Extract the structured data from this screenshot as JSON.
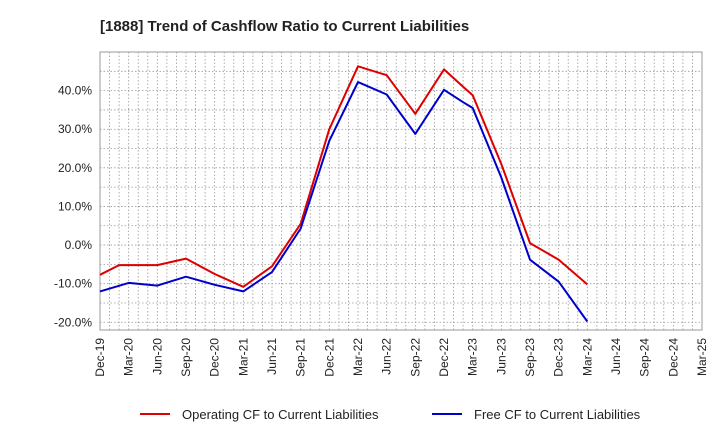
{
  "chart_data": {
    "type": "line",
    "title": "[1888]  Trend of Cashflow Ratio to Current Liabilities",
    "xlabel": "",
    "ylabel": "",
    "ylim": [
      -22,
      50
    ],
    "y_ticks": [
      40,
      30,
      20,
      10,
      0,
      -10,
      -20
    ],
    "y_tick_labels": [
      "40.0%",
      "30.0%",
      "20.0%",
      "10.0%",
      "0.0%",
      "-10.0%",
      "-20.0%"
    ],
    "x": [
      "Dec-19",
      "Mar-20",
      "Jun-20",
      "Sep-20",
      "Dec-20",
      "Mar-21",
      "Jun-21",
      "Sep-21",
      "Dec-21",
      "Mar-22",
      "Jun-22",
      "Sep-22",
      "Dec-22",
      "Mar-23",
      "Jun-23",
      "Sep-23",
      "Dec-23",
      "Mar-24",
      "Jun-24",
      "Sep-24",
      "Dec-24",
      "Mar-25"
    ],
    "x_tick_labels": [
      "Dec-19",
      "Mar-20",
      "Jun-20",
      "Sep-20",
      "Dec-20",
      "Mar-21",
      "Jun-21",
      "Sep-21",
      "Dec-21",
      "Mar-22",
      "Jun-22",
      "Sep-22",
      "Dec-22",
      "Mar-23",
      "Jun-23",
      "Sep-23",
      "Dec-23",
      "Mar-24",
      "Jun-24",
      "Sep-24",
      "Dec-24",
      "Mar-25"
    ],
    "grid": true,
    "legend_position": "bottom",
    "series": [
      {
        "name": "Operating CF to Current Liabilities",
        "color": "#dd0000",
        "points": [
          [
            "Dec-19",
            -7.7
          ],
          [
            "Feb-20",
            -5.2
          ],
          [
            "Jun-20",
            -5.2
          ],
          [
            "Sep-20",
            -3.5
          ],
          [
            "Dec-20",
            -7.5
          ],
          [
            "Mar-21",
            -10.8
          ],
          [
            "Jun-21",
            -5.5
          ],
          [
            "Sep-21",
            5.5
          ],
          [
            "Dec-21",
            30.0
          ],
          [
            "Mar-22",
            46.3
          ],
          [
            "Jun-22",
            44.0
          ],
          [
            "Sep-22",
            34.0
          ],
          [
            "Dec-22",
            45.5
          ],
          [
            "Feb-23",
            41.0
          ],
          [
            "Mar-23",
            38.8
          ],
          [
            "Jun-23",
            21.0
          ],
          [
            "Sep-23",
            0.5
          ],
          [
            "Dec-23",
            -3.8
          ],
          [
            "Mar-24",
            -10.2
          ]
        ]
      },
      {
        "name": "Free CF to Current Liabilities",
        "color": "#0000cc",
        "points": [
          [
            "Dec-19",
            -12.0
          ],
          [
            "Mar-20",
            -9.8
          ],
          [
            "Jun-20",
            -10.5
          ],
          [
            "Sep-20",
            -8.2
          ],
          [
            "Dec-20",
            -10.3
          ],
          [
            "Mar-21",
            -12.0
          ],
          [
            "Jun-21",
            -7.0
          ],
          [
            "Sep-21",
            4.3
          ],
          [
            "Dec-21",
            27.0
          ],
          [
            "Mar-22",
            42.2
          ],
          [
            "Jun-22",
            39.0
          ],
          [
            "Sep-22",
            28.8
          ],
          [
            "Dec-22",
            40.2
          ],
          [
            "Feb-23",
            37.0
          ],
          [
            "Mar-23",
            35.5
          ],
          [
            "Jun-23",
            17.5
          ],
          [
            "Sep-23",
            -3.8
          ],
          [
            "Dec-23",
            -9.5
          ],
          [
            "Mar-24",
            -19.8
          ]
        ]
      }
    ]
  }
}
